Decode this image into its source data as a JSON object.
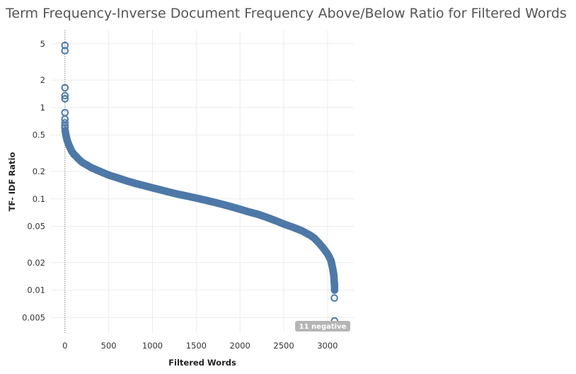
{
  "chart_data": {
    "type": "scatter",
    "title": "Term Frequency-Inverse Document Frequency Above/Below Ratio for Filtered Words",
    "xlabel": "Filtered Words",
    "ylabel": "TF- IDF Ratio",
    "x_scale": "linear",
    "y_scale": "log",
    "xlim": [
      -160,
      3300
    ],
    "ylim": [
      0.0034,
      7.0
    ],
    "x_ticks": [
      0,
      500,
      1000,
      1500,
      2000,
      2500,
      3000
    ],
    "y_ticks": [
      5,
      2,
      1,
      0.5,
      0.2,
      0.1,
      0.05,
      0.02,
      0.01,
      0.005
    ],
    "y_tick_labels": [
      "5",
      "2",
      "1",
      "0.5",
      "0.2",
      "0.1",
      "0.05",
      "0.02",
      "0.01",
      "0.005"
    ],
    "grid": true,
    "reference_line_x": 0,
    "marker": "hollow-circle",
    "marker_color": "#4e79a7",
    "annotation": "11 negative",
    "series": [
      {
        "points": [
          [
            0,
            4.8
          ],
          [
            0,
            4.2
          ],
          [
            0,
            1.65
          ],
          [
            0,
            1.35
          ],
          [
            0,
            1.25
          ],
          [
            0,
            0.88
          ],
          [
            0,
            0.75
          ],
          [
            0,
            0.68
          ],
          [
            0,
            0.63
          ],
          [
            0,
            0.6
          ],
          [
            3,
            0.56
          ],
          [
            8,
            0.52
          ],
          [
            15,
            0.48
          ],
          [
            25,
            0.44
          ],
          [
            40,
            0.4
          ],
          [
            60,
            0.36
          ],
          [
            80,
            0.33
          ],
          [
            100,
            0.31
          ],
          [
            130,
            0.29
          ],
          [
            160,
            0.27
          ],
          [
            200,
            0.25
          ],
          [
            250,
            0.235
          ],
          [
            300,
            0.22
          ],
          [
            400,
            0.2
          ],
          [
            500,
            0.182
          ],
          [
            600,
            0.17
          ],
          [
            700,
            0.158
          ],
          [
            800,
            0.148
          ],
          [
            900,
            0.14
          ],
          [
            1000,
            0.132
          ],
          [
            1100,
            0.125
          ],
          [
            1200,
            0.118
          ],
          [
            1300,
            0.112
          ],
          [
            1400,
            0.107
          ],
          [
            1500,
            0.102
          ],
          [
            1600,
            0.097
          ],
          [
            1700,
            0.092
          ],
          [
            1800,
            0.087
          ],
          [
            1900,
            0.082
          ],
          [
            2000,
            0.077
          ],
          [
            2100,
            0.072
          ],
          [
            2200,
            0.068
          ],
          [
            2300,
            0.063
          ],
          [
            2400,
            0.058
          ],
          [
            2500,
            0.053
          ],
          [
            2600,
            0.049
          ],
          [
            2700,
            0.045
          ],
          [
            2800,
            0.04
          ],
          [
            2850,
            0.037
          ],
          [
            2900,
            0.033
          ],
          [
            2950,
            0.029
          ],
          [
            3000,
            0.025
          ],
          [
            3020,
            0.023
          ],
          [
            3040,
            0.021
          ],
          [
            3050,
            0.019
          ],
          [
            3060,
            0.017
          ],
          [
            3065,
            0.016
          ],
          [
            3070,
            0.015
          ],
          [
            3073,
            0.014
          ],
          [
            3075,
            0.013
          ],
          [
            3078,
            0.012
          ],
          [
            3080,
            0.011
          ],
          [
            3080,
            0.01
          ],
          [
            3078,
            0.0082
          ],
          [
            3080,
            0.0046
          ]
        ]
      }
    ]
  }
}
